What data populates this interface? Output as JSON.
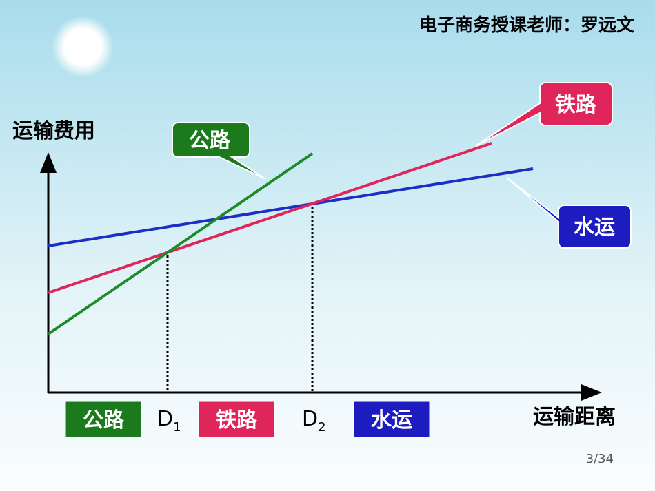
{
  "header": {
    "text": "电子商务授课老师：罗远文"
  },
  "axes": {
    "y_label": "运输费用",
    "x_label": "运输距离"
  },
  "callouts": [
    {
      "label": "公路"
    },
    {
      "label": "铁路"
    },
    {
      "label": "水运"
    }
  ],
  "ranges": [
    {
      "label": "公路"
    },
    {
      "label": "铁路"
    },
    {
      "label": "水运"
    }
  ],
  "thresholds": [
    {
      "label": "D",
      "subscript": "1"
    },
    {
      "label": "D",
      "subscript": "2"
    }
  ],
  "page_number": "3/34"
}
